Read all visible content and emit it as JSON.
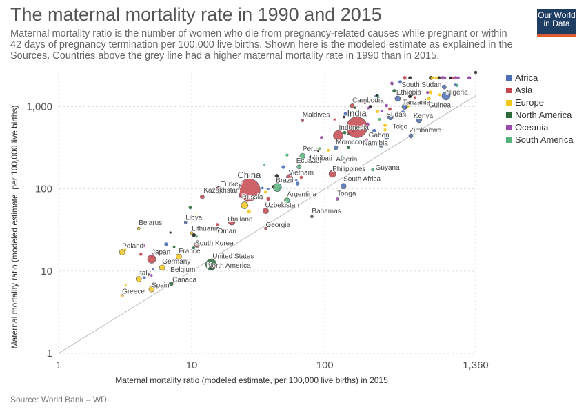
{
  "header": {
    "title": "The maternal mortality rate in 1990 and 2015",
    "subtitle": "Maternal mortality ratio is the number of women who die from pregnancy-related causes while pregnant or within 42 days of pregnancy termination per 100,000 live births. Shown here is the modeled estimate as explained in the Sources. Countries above the grey line had a higher maternal mortality rate in 1990 than in 2015.",
    "logo_line1": "Our World",
    "logo_line2": "in Data"
  },
  "footer": {
    "source": "Source: World Bank – WDI"
  },
  "colors": {
    "Africa": "#4c6fb5",
    "Asia": "#c4464f",
    "Europe": "#f2c71d",
    "North America": "#2f6a3b",
    "Oceania": "#9a49ad",
    "South America": "#55b37b",
    "Other": "#222222"
  },
  "chart_data": {
    "type": "scatter",
    "xlabel": "Maternal mortality ratio (modeled estimate, per 100,000 live births) in 2015",
    "ylabel": "Maternal mortality ratio (modeled estimate, per 100,000 live births)",
    "x_scale": "log",
    "y_scale": "log",
    "xlim": [
      1,
      1360
    ],
    "ylim": [
      1,
      2600
    ],
    "x_ticks": [
      {
        "v": 1,
        "label": "1"
      },
      {
        "v": 10,
        "label": "10"
      },
      {
        "v": 100,
        "label": "100"
      },
      {
        "v": 1360,
        "label": "1,360"
      }
    ],
    "y_ticks": [
      {
        "v": 1,
        "label": "1"
      },
      {
        "v": 10,
        "label": "10"
      },
      {
        "v": 100,
        "label": "100"
      },
      {
        "v": 1000,
        "label": "1,000"
      }
    ],
    "reference_line": "y = x",
    "grid": true,
    "legend_position": "right",
    "legend": [
      "Africa",
      "Asia",
      "Europe",
      "North America",
      "Oceania",
      "South America"
    ],
    "points": [
      {
        "label": "India",
        "x": 174,
        "y": 560,
        "r": 15,
        "region": "Asia"
      },
      {
        "label": "China",
        "x": 27,
        "y": 97,
        "r": 16,
        "region": "Asia"
      },
      {
        "label": "Indonesia",
        "x": 126,
        "y": 446,
        "r": 7,
        "region": "Asia"
      },
      {
        "label": "Nigeria",
        "x": 814,
        "y": 1350,
        "r": 6,
        "region": "Africa"
      },
      {
        "label": "Brazil",
        "x": 44,
        "y": 104,
        "r": 6,
        "region": "South America"
      },
      {
        "label": "United States",
        "x": 14,
        "y": 12,
        "r": 8,
        "region": "North America"
      },
      {
        "label": "North America",
        "x": 14,
        "y": 11,
        "r": 3,
        "region": "North America"
      },
      {
        "label": "Russia",
        "x": 25,
        "y": 63,
        "r": 5,
        "region": "Europe"
      },
      {
        "label": "Japan",
        "x": 5,
        "y": 14,
        "r": 6,
        "region": "Asia"
      },
      {
        "label": "Germany",
        "x": 6,
        "y": 11,
        "r": 4,
        "region": "Europe"
      },
      {
        "label": "France",
        "x": 8,
        "y": 15,
        "r": 4,
        "region": "Europe"
      },
      {
        "label": "Belgium",
        "x": 7,
        "y": 10,
        "r": 2,
        "region": "Europe"
      },
      {
        "label": "Canada",
        "x": 7,
        "y": 7,
        "r": 3,
        "region": "North America"
      },
      {
        "label": "Italy",
        "x": 4,
        "y": 8,
        "r": 4,
        "region": "Europe"
      },
      {
        "label": "Spain",
        "x": 5,
        "y": 6,
        "r": 4,
        "region": "Europe"
      },
      {
        "label": "Greece",
        "x": 3,
        "y": 5,
        "r": 2,
        "region": "Europe"
      },
      {
        "label": "Poland",
        "x": 3,
        "y": 17,
        "r": 4,
        "region": "Europe"
      },
      {
        "label": "Belarus",
        "x": 4,
        "y": 33,
        "r": 2,
        "region": "Europe"
      },
      {
        "label": "Libya",
        "x": 9,
        "y": 39,
        "r": 2,
        "region": "Africa"
      },
      {
        "label": "Lithuania",
        "x": 10,
        "y": 29,
        "r": 2,
        "region": "Europe"
      },
      {
        "label": "South Korea",
        "x": 11,
        "y": 21,
        "r": 4,
        "region": "Asia"
      },
      {
        "label": "Kazakhstan",
        "x": 12,
        "y": 80,
        "r": 3,
        "region": "Asia"
      },
      {
        "label": "Turkey",
        "x": 16,
        "y": 97,
        "r": 5,
        "region": "Asia"
      },
      {
        "label": "Oman",
        "x": 17,
        "y": 30,
        "r": 2,
        "region": "Asia"
      },
      {
        "label": "Thailand",
        "x": 20,
        "y": 40,
        "r": 5,
        "region": "Asia"
      },
      {
        "label": "Uzbekistan",
        "x": 36,
        "y": 54,
        "r": 4,
        "region": "Asia"
      },
      {
        "label": "Georgia",
        "x": 36,
        "y": 33,
        "r": 2,
        "region": "Asia"
      },
      {
        "label": "Argentina",
        "x": 52,
        "y": 72,
        "r": 4,
        "region": "South America"
      },
      {
        "label": "Bahamas",
        "x": 80,
        "y": 46,
        "r": 2,
        "region": "North America"
      },
      {
        "label": "Vietnam",
        "x": 54,
        "y": 139,
        "r": 4,
        "region": "Asia"
      },
      {
        "label": "Ecuador",
        "x": 64,
        "y": 185,
        "r": 3,
        "region": "South America"
      },
      {
        "label": "Peru",
        "x": 68,
        "y": 251,
        "r": 4,
        "region": "South America"
      },
      {
        "label": "Kiribati",
        "x": 90,
        "y": 234,
        "r": 2,
        "region": "Oceania"
      },
      {
        "label": "Philippines",
        "x": 114,
        "y": 152,
        "r": 5,
        "region": "Asia"
      },
      {
        "label": "Algeria",
        "x": 140,
        "y": 216,
        "r": 3,
        "region": "Africa"
      },
      {
        "label": "South Africa",
        "x": 138,
        "y": 108,
        "r": 4,
        "region": "Africa"
      },
      {
        "label": "Tonga",
        "x": 124,
        "y": 75,
        "r": 2,
        "region": "Oceania"
      },
      {
        "label": "Guyana",
        "x": 229,
        "y": 171,
        "r": 2,
        "region": "South America"
      },
      {
        "label": "Morocco",
        "x": 121,
        "y": 317,
        "r": 3,
        "region": "Africa"
      },
      {
        "label": "Maldives",
        "x": 68,
        "y": 677,
        "r": 2,
        "region": "Asia"
      },
      {
        "label": "Cambodia",
        "x": 161,
        "y": 1020,
        "r": 3,
        "region": "Asia"
      },
      {
        "label": "Namibia",
        "x": 265,
        "y": 338,
        "r": 3,
        "region": "Africa"
      },
      {
        "label": "Gabon",
        "x": 291,
        "y": 422,
        "r": 3,
        "region": "Africa"
      },
      {
        "label": "Zimbabwe",
        "x": 443,
        "y": 440,
        "r": 3,
        "region": "Africa"
      },
      {
        "label": "Togo",
        "x": 368,
        "y": 568,
        "r": 3,
        "region": "Africa"
      },
      {
        "label": "Sudan",
        "x": 311,
        "y": 744,
        "r": 4,
        "region": "Africa"
      },
      {
        "label": "Kenya",
        "x": 510,
        "y": 687,
        "r": 4,
        "region": "Africa"
      },
      {
        "label": "Tanzania",
        "x": 398,
        "y": 997,
        "r": 4,
        "region": "Africa"
      },
      {
        "label": "Ethiopia",
        "x": 353,
        "y": 1250,
        "r": 4,
        "region": "Africa"
      },
      {
        "label": "Guinea",
        "x": 679,
        "y": 1040,
        "r": 3,
        "region": "Africa"
      },
      {
        "label": "South Sudan",
        "x": 789,
        "y": 1730,
        "r": 3,
        "region": "Africa"
      },
      {
        "label": "",
        "x": 1360,
        "y": 2600,
        "r": 2,
        "region": "Other"
      }
    ],
    "labels": [
      {
        "text": "India",
        "x": 174,
        "y": 560,
        "anchor": "middle",
        "dx": 0,
        "dy": -16,
        "size": 13
      },
      {
        "text": "China",
        "x": 27,
        "y": 97,
        "anchor": "middle",
        "dx": 0,
        "dy": -17,
        "size": 13
      },
      {
        "text": "Indonesia",
        "x": 126,
        "y": 446,
        "anchor": "start",
        "dx": 1,
        "dy": -8,
        "size": 10
      },
      {
        "text": "Nigeria",
        "x": 814,
        "y": 1350,
        "anchor": "start",
        "dx": 0,
        "dy": -2,
        "size": 10
      },
      {
        "text": "Brazil",
        "x": 44,
        "y": 104,
        "anchor": "start",
        "dx": -2,
        "dy": -7,
        "size": 10
      },
      {
        "text": "United States",
        "x": 14,
        "y": 12,
        "anchor": "start",
        "dx": 2,
        "dy": -9,
        "size": 10
      },
      {
        "text": "North America",
        "x": 14,
        "y": 11,
        "anchor": "start",
        "dx": -6,
        "dy": 0,
        "size": 10
      },
      {
        "text": "Russia",
        "x": 25,
        "y": 63,
        "anchor": "start",
        "dx": -4,
        "dy": -9,
        "size": 10
      },
      {
        "text": "Japan",
        "x": 5,
        "y": 14,
        "anchor": "start",
        "dx": 0,
        "dy": -7,
        "size": 10
      },
      {
        "text": "Germany",
        "x": 6,
        "y": 11,
        "anchor": "start",
        "dx": 0,
        "dy": -6,
        "size": 10
      },
      {
        "text": "France",
        "x": 8,
        "y": 15,
        "anchor": "start",
        "dx": 0,
        "dy": -5,
        "size": 10
      },
      {
        "text": "Belgium",
        "x": 7,
        "y": 10,
        "anchor": "start",
        "dx": -1,
        "dy": 1,
        "size": 10
      },
      {
        "text": "Canada",
        "x": 7,
        "y": 7,
        "anchor": "start",
        "dx": 2,
        "dy": -3,
        "size": 10
      },
      {
        "text": "Italy",
        "x": 4,
        "y": 8,
        "anchor": "start",
        "dx": -1,
        "dy": -6,
        "size": 10
      },
      {
        "text": "Spain",
        "x": 5,
        "y": 6,
        "anchor": "start",
        "dx": 0,
        "dy": -3,
        "size": 10
      },
      {
        "text": "Greece",
        "x": 3,
        "y": 5,
        "anchor": "start",
        "dx": 0,
        "dy": -3,
        "size": 10
      },
      {
        "text": "Poland",
        "x": 3,
        "y": 17,
        "anchor": "start",
        "dx": 0,
        "dy": -6,
        "size": 10
      },
      {
        "text": "Belarus",
        "x": 4,
        "y": 33,
        "anchor": "start",
        "dx": 0,
        "dy": -5,
        "size": 10
      },
      {
        "text": "Libya",
        "x": 9,
        "y": 39,
        "anchor": "start",
        "dx": 0,
        "dy": -4,
        "size": 10
      },
      {
        "text": "Lithuania",
        "x": 10,
        "y": 29,
        "anchor": "start",
        "dx": 0,
        "dy": -3,
        "size": 10
      },
      {
        "text": "South Korea",
        "x": 11,
        "y": 21,
        "anchor": "start",
        "dx": -3,
        "dy": 1,
        "size": 10
      },
      {
        "text": "Kazakhstan",
        "x": 12,
        "y": 80,
        "anchor": "start",
        "dx": 2,
        "dy": -6,
        "size": 10
      },
      {
        "text": "Turkey",
        "x": 16,
        "y": 97,
        "anchor": "start",
        "dx": 3,
        "dy": -5,
        "size": 10
      },
      {
        "text": "Oman",
        "x": 17,
        "y": 30,
        "anchor": "start",
        "dx": -7,
        "dy": 2,
        "size": 10
      },
      {
        "text": "Thailand",
        "x": 20,
        "y": 40,
        "anchor": "start",
        "dx": -8,
        "dy": 0,
        "size": 10
      },
      {
        "text": "Uzbekistan",
        "x": 36,
        "y": 54,
        "anchor": "start",
        "dx": -1,
        "dy": -5,
        "size": 10
      },
      {
        "text": "Georgia",
        "x": 36,
        "y": 33,
        "anchor": "start",
        "dx": 0,
        "dy": -2,
        "size": 10
      },
      {
        "text": "Argentina",
        "x": 52,
        "y": 72,
        "anchor": "start",
        "dx": 0,
        "dy": -6,
        "size": 10
      },
      {
        "text": "Bahamas",
        "x": 80,
        "y": 46,
        "anchor": "start",
        "dx": 0,
        "dy": -5,
        "size": 10
      },
      {
        "text": "Vietnam",
        "x": 54,
        "y": 139,
        "anchor": "start",
        "dx": -1,
        "dy": -3,
        "size": 10
      },
      {
        "text": "Ecuador",
        "x": 64,
        "y": 185,
        "anchor": "start",
        "dx": -4,
        "dy": -6,
        "size": 10
      },
      {
        "text": "Peru",
        "x": 68,
        "y": 251,
        "anchor": "start",
        "dx": 0,
        "dy": -7,
        "size": 10
      },
      {
        "text": "Kiribati",
        "x": 90,
        "y": 234,
        "anchor": "start",
        "dx": -11,
        "dy": 3,
        "size": 10
      },
      {
        "text": "Philippines",
        "x": 114,
        "y": 152,
        "anchor": "start",
        "dx": 0,
        "dy": -4,
        "size": 10
      },
      {
        "text": "Algeria",
        "x": 140,
        "y": 216,
        "anchor": "start",
        "dx": -12,
        "dy": 0,
        "size": 10
      },
      {
        "text": "South Africa",
        "x": 138,
        "y": 108,
        "anchor": "start",
        "dx": 0,
        "dy": -7,
        "size": 10
      },
      {
        "text": "Tonga",
        "x": 124,
        "y": 75,
        "anchor": "start",
        "dx": 0,
        "dy": -5,
        "size": 10
      },
      {
        "text": "Guyana",
        "x": 229,
        "y": 171,
        "anchor": "start",
        "dx": 4,
        "dy": 0,
        "size": 10
      },
      {
        "text": "Morocco",
        "x": 121,
        "y": 317,
        "anchor": "start",
        "dx": 0,
        "dy": -5,
        "size": 10
      },
      {
        "text": "Maldives",
        "x": 68,
        "y": 677,
        "anchor": "start",
        "dx": 0,
        "dy": -5,
        "size": 10
      },
      {
        "text": "Cambodia",
        "x": 161,
        "y": 1020,
        "anchor": "start",
        "dx": 0,
        "dy": -5,
        "size": 10
      },
      {
        "text": "Namibia",
        "x": 265,
        "y": 338,
        "anchor": "end",
        "dx": 10,
        "dy": 0,
        "size": 10
      },
      {
        "text": "Gabon",
        "x": 291,
        "y": 422,
        "anchor": "end",
        "dx": 4,
        "dy": 0,
        "size": 10
      },
      {
        "text": "Zimbabwe",
        "x": 443,
        "y": 440,
        "anchor": "start",
        "dx": -2,
        "dy": -5,
        "size": 10
      },
      {
        "text": "Togo",
        "x": 368,
        "y": 568,
        "anchor": "start",
        "dx": -11,
        "dy": 3,
        "size": 10
      },
      {
        "text": "Sudan",
        "x": 311,
        "y": 744,
        "anchor": "start",
        "dx": -6,
        "dy": -1,
        "size": 10
      },
      {
        "text": "Kenya",
        "x": 510,
        "y": 687,
        "anchor": "start",
        "dx": -8,
        "dy": -3,
        "size": 10
      },
      {
        "text": "Tanzania",
        "x": 398,
        "y": 997,
        "anchor": "start",
        "dx": -3,
        "dy": -3,
        "size": 10
      },
      {
        "text": "Ethiopia",
        "x": 353,
        "y": 1250,
        "anchor": "start",
        "dx": -2,
        "dy": -6,
        "size": 10
      },
      {
        "text": "Guinea",
        "x": 679,
        "y": 1040,
        "anchor": "start",
        "dx": -10,
        "dy": 3,
        "size": 10
      },
      {
        "text": "South Sudan",
        "x": 789,
        "y": 1730,
        "anchor": "end",
        "dx": -4,
        "dy": 0,
        "size": 10
      }
    ]
  }
}
